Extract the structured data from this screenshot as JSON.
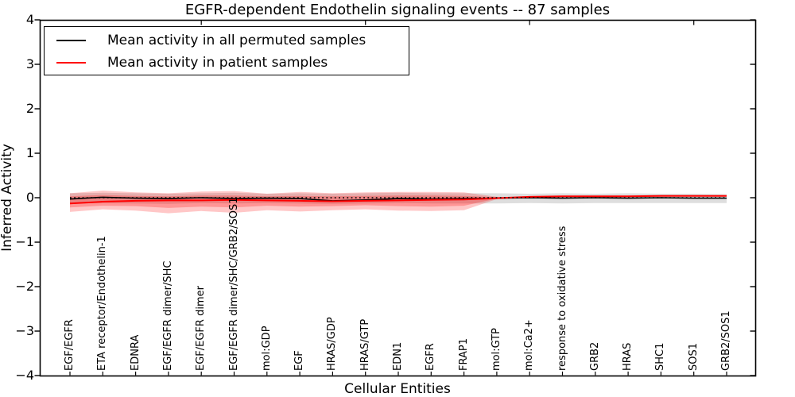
{
  "title": "EGFR-dependent Endothelin signaling events -- 87 samples",
  "legend": {
    "items": [
      {
        "label": "Mean activity in all permuted samples",
        "color": "#000000"
      },
      {
        "label": "Mean activity in patient samples",
        "color": "#ff0000"
      }
    ]
  },
  "chart_data": {
    "type": "line",
    "title": "EGFR-dependent Endothelin signaling events -- 87 samples",
    "xlabel": "Cellular Entities",
    "ylabel": "Inferred Activity",
    "ylim": [
      -4,
      4
    ],
    "grid": false,
    "legend_position": "upper left",
    "yticks": [
      4,
      3,
      2,
      1,
      0,
      -1,
      -2,
      -3,
      -4
    ],
    "ytick_labels": [
      "4",
      "3",
      "2",
      "1",
      "0",
      "−1",
      "−2",
      "−3",
      "−4"
    ],
    "major_xticks": [
      5,
      10,
      15,
      20
    ],
    "categories": [
      "EGF/EGFR",
      "ETA receptor/Endothelin-1",
      "EDNRA",
      "EGF/EGFR dimer/SHC",
      "EGF/EGFR dimer",
      "EGF/EGFR dimer/SHC/GRB2/SOS1",
      "mol:GDP",
      "EGF",
      "HRAS/GDP",
      "HRAS/GTP",
      "EDN1",
      "EGFR",
      "FRAP1",
      "mol:GTP",
      "mol:Ca2+",
      "response to oxidative stress",
      "GRB2",
      "HRAS",
      "SHC1",
      "SOS1",
      "GRB2/SOS1"
    ],
    "series": [
      {
        "name": "Mean activity in all permuted samples",
        "color": "#000000",
        "style": "solid",
        "width": 1.6,
        "values": [
          -0.03,
          0.01,
          -0.01,
          -0.02,
          0.0,
          -0.02,
          -0.01,
          -0.02,
          -0.07,
          -0.05,
          -0.02,
          -0.03,
          -0.02,
          -0.01,
          0.0,
          -0.01,
          0.0,
          -0.01,
          0.0,
          -0.01,
          -0.01
        ]
      },
      {
        "name": "Mean activity in patient samples",
        "color": "#ff0000",
        "style": "solid",
        "width": 2.0,
        "values": [
          -0.13,
          -0.09,
          -0.07,
          -0.06,
          -0.06,
          -0.05,
          -0.06,
          -0.07,
          -0.08,
          -0.07,
          -0.06,
          -0.05,
          -0.04,
          -0.01,
          0.02,
          0.03,
          0.03,
          0.03,
          0.04,
          0.04,
          0.04
        ]
      },
      {
        "name": "zero reference",
        "color": "#000000",
        "style": "dotted",
        "width": 1.6,
        "values": [
          0,
          0,
          0,
          0,
          0,
          0,
          0,
          0,
          0,
          0,
          0,
          0,
          0,
          0,
          0,
          0,
          0,
          0,
          0,
          0,
          0
        ]
      }
    ],
    "bands": [
      {
        "name": "permuted samples range",
        "color": "rgba(0,0,0,0.13)",
        "start": 0,
        "top": [
          0.1,
          0.11,
          0.1,
          0.09,
          0.1,
          0.11,
          0.09,
          0.1,
          0.09,
          0.1,
          0.11,
          0.1,
          0.1,
          0.1,
          0.09,
          0.1,
          0.09,
          0.1,
          0.09,
          0.09,
          0.08
        ],
        "bottom": [
          -0.13,
          -0.12,
          -0.13,
          -0.14,
          -0.12,
          -0.13,
          -0.12,
          -0.13,
          -0.14,
          -0.13,
          -0.12,
          -0.13,
          -0.13,
          -0.13,
          -0.12,
          -0.13,
          -0.12,
          -0.12,
          -0.12,
          -0.12,
          -0.12
        ]
      },
      {
        "name": "patient samples range (outer)",
        "color": "rgba(255,0,0,0.22)",
        "start": 0,
        "top": [
          0.1,
          0.16,
          0.12,
          0.1,
          0.14,
          0.15,
          0.09,
          0.13,
          0.1,
          0.12,
          0.13,
          0.13,
          0.12,
          0.02,
          0.0
        ],
        "bottom": [
          -0.32,
          -0.26,
          -0.29,
          -0.35,
          -0.3,
          -0.34,
          -0.28,
          -0.31,
          -0.28,
          -0.26,
          -0.29,
          -0.3,
          -0.28,
          -0.03,
          0.0
        ]
      },
      {
        "name": "patient samples range (inner)",
        "color": "rgba(255,0,0,0.25)",
        "start": 0,
        "top": [
          0.03,
          0.06,
          0.04,
          0.03,
          0.05,
          0.05,
          0.03,
          0.04,
          0.03,
          0.04,
          0.05,
          0.05,
          0.04,
          0.01,
          0.0
        ],
        "bottom": [
          -0.22,
          -0.18,
          -0.19,
          -0.23,
          -0.2,
          -0.22,
          -0.18,
          -0.2,
          -0.19,
          -0.17,
          -0.19,
          -0.2,
          -0.18,
          -0.02,
          0.0
        ]
      }
    ]
  }
}
